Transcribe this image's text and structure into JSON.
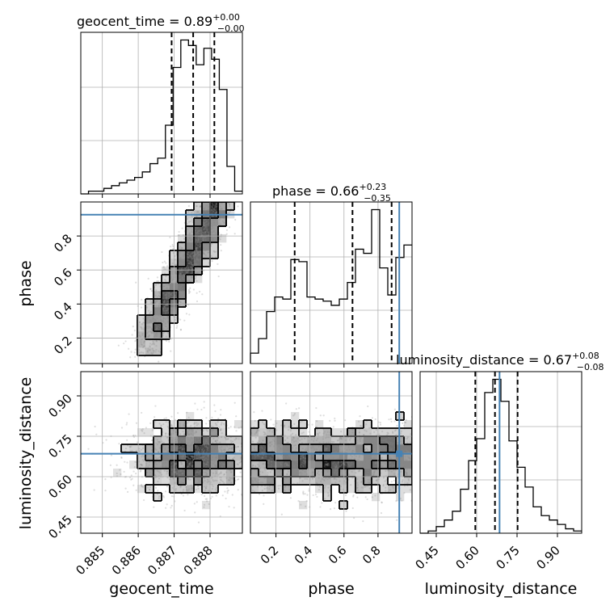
{
  "chart_data": {
    "type": "corner",
    "parameters": [
      "geocent_time",
      "phase",
      "luminosity_distance"
    ],
    "titles": [
      {
        "name": "geocent_time",
        "median": "0.89",
        "plus": "+0.00",
        "minus": "−0.00"
      },
      {
        "name": "phase",
        "median": "0.66",
        "plus": "+0.23",
        "minus": "−0.35"
      },
      {
        "name": "luminosity_distance",
        "median": "0.67",
        "plus": "+0.08",
        "minus": "−0.08"
      }
    ],
    "ranges": {
      "geocent_time": [
        0.8844,
        0.8889
      ],
      "phase": [
        0.05,
        1.0
      ],
      "luminosity_distance": [
        0.39,
        0.99
      ]
    },
    "ticks": {
      "geocent_time": [
        0.885,
        0.886,
        0.887,
        0.888
      ],
      "phase": [
        0.2,
        0.4,
        0.6,
        0.8
      ],
      "luminosity_distance": [
        0.45,
        0.6,
        0.75,
        0.9
      ]
    },
    "tick_labels": {
      "geocent_time": [
        "0.885",
        "0.886",
        "0.887",
        "0.888"
      ],
      "phase": [
        "0.2",
        "0.4",
        "0.6",
        "0.8"
      ],
      "luminosity_distance": [
        "0.45",
        "0.60",
        "0.75",
        "0.90"
      ]
    },
    "quantiles": {
      "geocent_time": [
        0.88693,
        0.88753,
        0.88812
      ],
      "phase": [
        0.31,
        0.65,
        0.88
      ],
      "luminosity_distance": [
        0.595,
        0.668,
        0.752
      ]
    },
    "truths": {
      "geocent_time": null,
      "phase": 0.925,
      "luminosity_distance": 0.685
    },
    "hist_1d": {
      "geocent_time": [
        0,
        1,
        1,
        2,
        3,
        4,
        5,
        6,
        8,
        11,
        13,
        25,
        46,
        56,
        54,
        47,
        53,
        49,
        38,
        10,
        1
      ],
      "phase": [
        5,
        12,
        25,
        32,
        31,
        50,
        49,
        32,
        31,
        30,
        28,
        31,
        39,
        55,
        53,
        74,
        46,
        33,
        51,
        57
      ],
      "luminosity_distance": [
        0,
        1,
        3,
        6,
        10,
        20,
        33,
        43,
        64,
        70,
        60,
        42,
        30,
        21,
        12,
        8,
        6,
        4,
        2,
        1
      ]
    },
    "grid": true
  }
}
